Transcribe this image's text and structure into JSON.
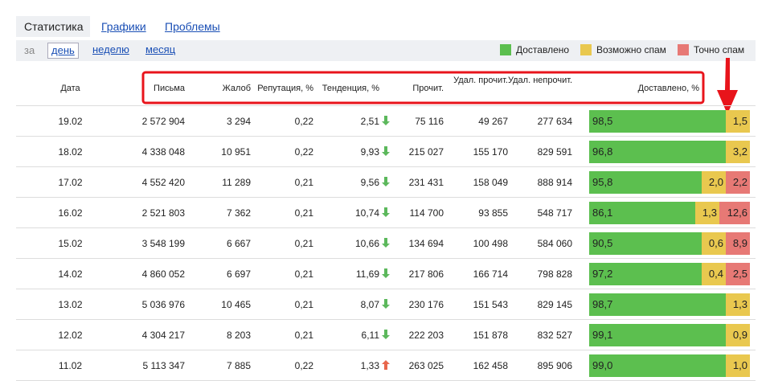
{
  "tabs": [
    "Статистика",
    "Графики",
    "Проблемы"
  ],
  "period": {
    "prefix": "за",
    "options": [
      "день",
      "неделю",
      "месяц"
    ]
  },
  "legend": [
    {
      "label": "Доставлено",
      "color": "#5cbf4f"
    },
    {
      "label": "Возможно спам",
      "color": "#e9c84f"
    },
    {
      "label": "Точно спам",
      "color": "#e77975"
    }
  ],
  "table": {
    "headers": [
      "Дата",
      "Письма",
      "Жалоб",
      "Репутация, %",
      "Тенденция, %",
      "Прочит.",
      "Удал. прочит.",
      "Удал. непрочит.",
      "Доставлено, %"
    ],
    "rows": [
      {
        "date": "19.02",
        "letters": "2 572 904",
        "complaints": "3 294",
        "reputation": "0,22",
        "trend": "2,51",
        "trend_dir": "down",
        "read": "75 116",
        "deleted_read": "49 267",
        "deleted_unread": "277 634",
        "delivered": "98,5",
        "maybe_spam": "1,5"
      },
      {
        "date": "18.02",
        "letters": "4 338 048",
        "complaints": "10 951",
        "reputation": "0,22",
        "trend": "9,93",
        "trend_dir": "down",
        "read": "215 027",
        "deleted_read": "155 170",
        "deleted_unread": "829 591",
        "delivered": "96,8",
        "maybe_spam": "3,2"
      },
      {
        "date": "17.02",
        "letters": "4 552 420",
        "complaints": "11 289",
        "reputation": "0,21",
        "trend": "9,56",
        "trend_dir": "down",
        "read": "231 431",
        "deleted_read": "158 049",
        "deleted_unread": "888 914",
        "delivered": "95,8",
        "maybe_spam": "2,0",
        "spam": "2,2"
      },
      {
        "date": "16.02",
        "letters": "2 521 803",
        "complaints": "7 362",
        "reputation": "0,21",
        "trend": "10,74",
        "trend_dir": "down",
        "read": "114 700",
        "deleted_read": "93 855",
        "deleted_unread": "548 717",
        "delivered": "86,1",
        "maybe_spam": "1,3",
        "spam": "12,6"
      },
      {
        "date": "15.02",
        "letters": "3 548 199",
        "complaints": "6 667",
        "reputation": "0,21",
        "trend": "10,66",
        "trend_dir": "down",
        "read": "134 694",
        "deleted_read": "100 498",
        "deleted_unread": "584 060",
        "delivered": "90,5",
        "maybe_spam": "0,6",
        "spam": "8,9"
      },
      {
        "date": "14.02",
        "letters": "4 860 052",
        "complaints": "6 697",
        "reputation": "0,21",
        "trend": "11,69",
        "trend_dir": "down",
        "read": "217 806",
        "deleted_read": "166 714",
        "deleted_unread": "798 828",
        "delivered": "97,2",
        "maybe_spam": "0,4",
        "spam": "2,5"
      },
      {
        "date": "13.02",
        "letters": "5 036 976",
        "complaints": "10 465",
        "reputation": "0,21",
        "trend": "8,07",
        "trend_dir": "down",
        "read": "230 176",
        "deleted_read": "151 543",
        "deleted_unread": "829 145",
        "delivered": "98,7",
        "maybe_spam": "1,3"
      },
      {
        "date": "12.02",
        "letters": "4 304 217",
        "complaints": "8 203",
        "reputation": "0,21",
        "trend": "6,11",
        "trend_dir": "down",
        "read": "222 203",
        "deleted_read": "151 878",
        "deleted_unread": "832 527",
        "delivered": "99,1",
        "maybe_spam": "0,9"
      },
      {
        "date": "11.02",
        "letters": "5 113 347",
        "complaints": "7 885",
        "reputation": "0,22",
        "trend": "1,33",
        "trend_dir": "up",
        "read": "263 025",
        "deleted_read": "162 458",
        "deleted_unread": "895 906",
        "delivered": "99,0",
        "maybe_spam": "1,0"
      }
    ]
  }
}
